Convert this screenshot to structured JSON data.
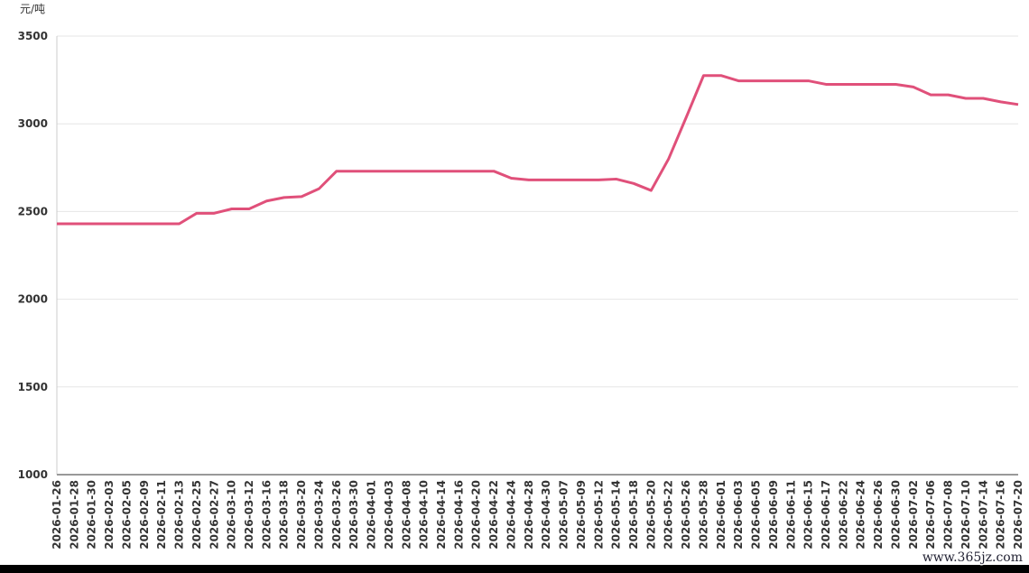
{
  "chart_data": {
    "type": "line",
    "y_unit": "元/吨",
    "watermark": "www.365jz.com",
    "categories": [
      "2026-01-26",
      "2026-01-28",
      "2026-01-30",
      "2026-02-03",
      "2026-02-05",
      "2026-02-09",
      "2026-02-11",
      "2026-02-13",
      "2026-02-25",
      "2026-02-27",
      "2026-03-10",
      "2026-03-12",
      "2026-03-16",
      "2026-03-18",
      "2026-03-20",
      "2026-03-24",
      "2026-03-26",
      "2026-03-30",
      "2026-04-01",
      "2026-04-03",
      "2026-04-08",
      "2026-04-10",
      "2026-04-14",
      "2026-04-16",
      "2026-04-20",
      "2026-04-22",
      "2026-04-24",
      "2026-04-28",
      "2026-04-30",
      "2026-05-07",
      "2026-05-09",
      "2026-05-12",
      "2026-05-14",
      "2026-05-18",
      "2026-05-20",
      "2026-05-22",
      "2026-05-26",
      "2026-05-28",
      "2026-06-01",
      "2026-06-03",
      "2026-06-05",
      "2026-06-09",
      "2026-06-11",
      "2026-06-15",
      "2026-06-17",
      "2026-06-22",
      "2026-06-24",
      "2026-06-26",
      "2026-06-30",
      "2026-07-02",
      "2026-07-06",
      "2026-07-08",
      "2026-07-10",
      "2026-07-14",
      "2026-07-16",
      "2026-07-20"
    ],
    "series": [
      {
        "color": "#e0507a",
        "values": [
          2430,
          2430,
          2430,
          2430,
          2430,
          2430,
          2430,
          2430,
          2490,
          2490,
          2515,
          2515,
          2560,
          2580,
          2585,
          2630,
          2730,
          2730,
          2730,
          2730,
          2730,
          2730,
          2730,
          2730,
          2730,
          2730,
          2690,
          2680,
          2680,
          2680,
          2680,
          2680,
          2685,
          2660,
          2620,
          2800,
          3035,
          3275,
          3275,
          3245,
          3245,
          3245,
          3245,
          3245,
          3225,
          3225,
          3225,
          3225,
          3225,
          3210,
          3165,
          3165,
          3145,
          3145,
          3125,
          3110
        ]
      }
    ],
    "ylim": [
      1000,
      3500
    ],
    "yticks": [
      1000,
      1500,
      2000,
      2500,
      3000,
      3500
    ],
    "grid": true
  }
}
